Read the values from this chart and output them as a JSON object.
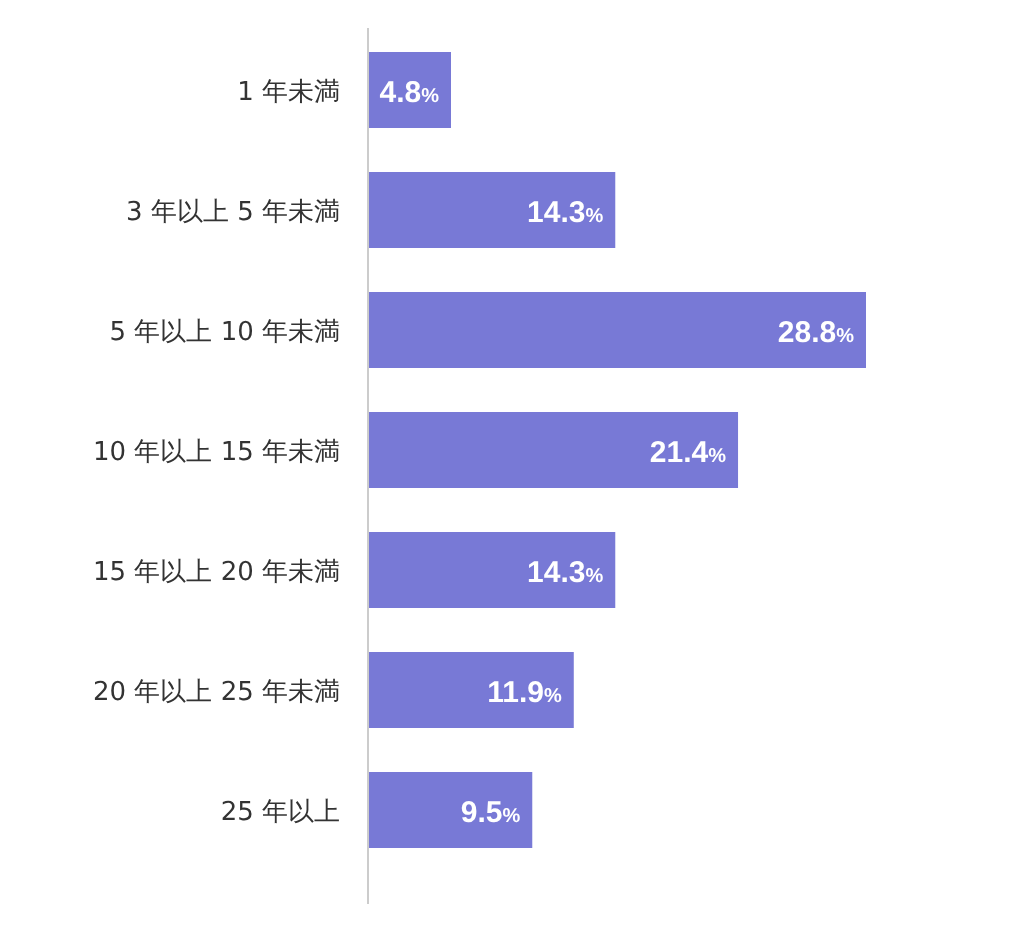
{
  "chart_data": {
    "type": "bar",
    "orientation": "horizontal",
    "categories": [
      "1 年未満",
      "3 年以上 5 年未満",
      "5 年以上 10 年未満",
      "10 年以上 15 年未満",
      "15 年以上 20 年未満",
      "20 年以上 25 年未満",
      "25 年以上"
    ],
    "values": [
      4.8,
      14.3,
      28.8,
      21.4,
      14.3,
      11.9,
      9.5
    ],
    "value_labels": [
      "4.8%",
      "14.3%",
      "28.8%",
      "21.4%",
      "14.3%",
      "11.9%",
      "9.5%"
    ],
    "color": "#7879d6"
  }
}
